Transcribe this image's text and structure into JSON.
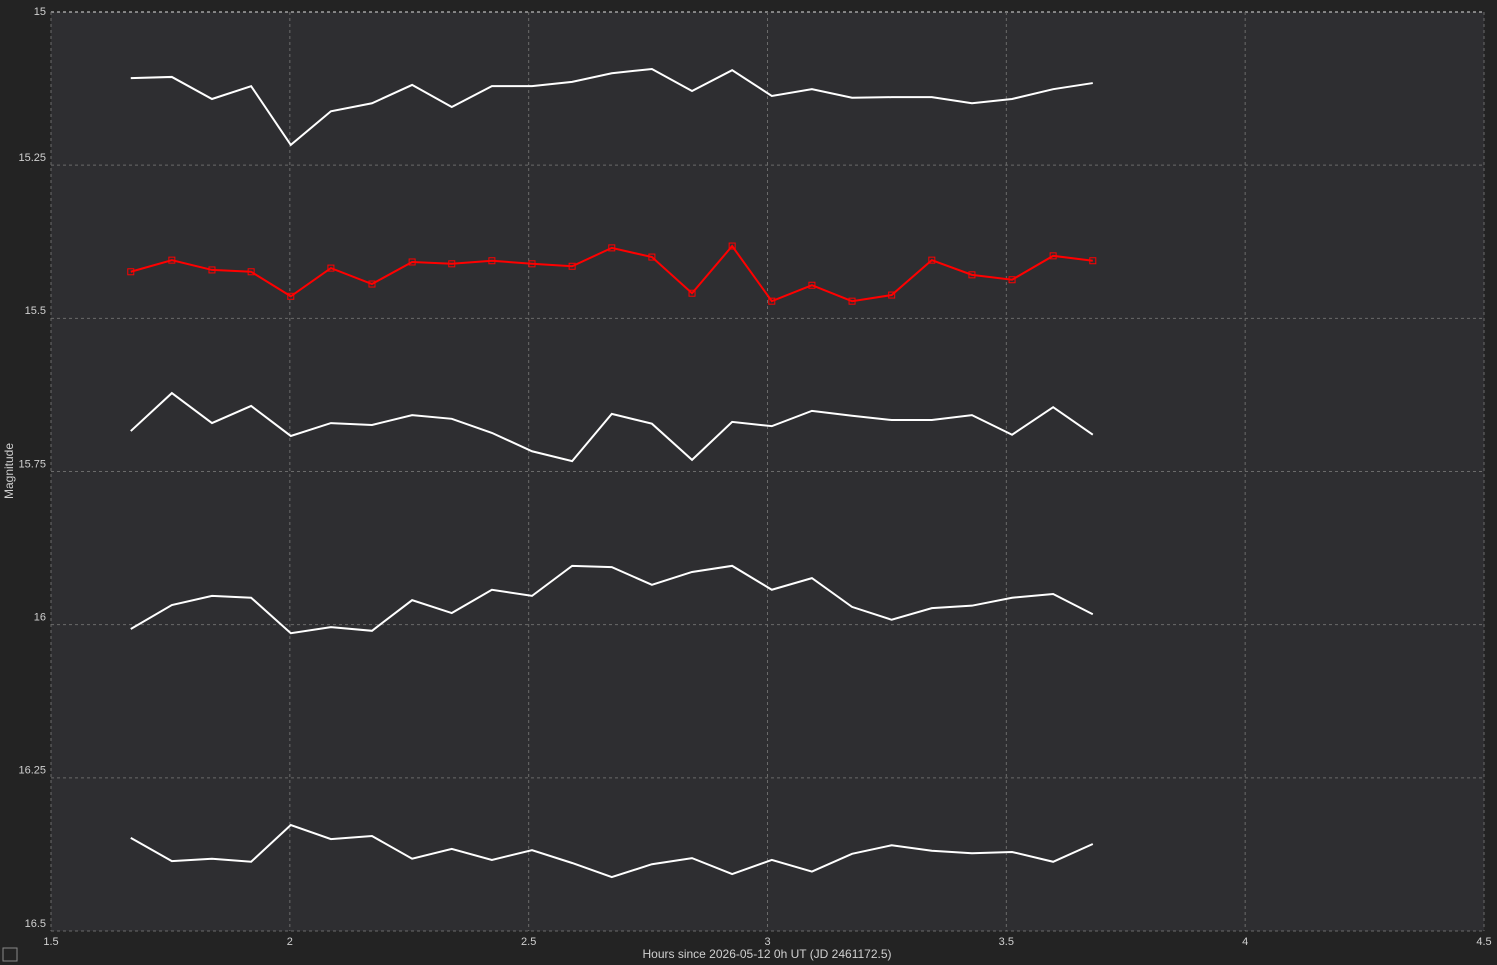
{
  "chart_data": {
    "type": "line",
    "xlabel": "Hours since 2026-05-12 0h UT (JD 2461172.5)",
    "ylabel": "Magnitude",
    "x": [
      1.667,
      1.753,
      1.837,
      1.919,
      2.002,
      2.086,
      2.172,
      2.256,
      2.339,
      2.423,
      2.507,
      2.591,
      2.674,
      2.758,
      2.842,
      2.926,
      3.009,
      3.093,
      3.177,
      3.26,
      3.344,
      3.428,
      3.512,
      3.598,
      3.681
    ],
    "series": [
      {
        "color": "#ffffff",
        "values": [
          15.108,
          15.106,
          15.142,
          15.121,
          15.217,
          15.162,
          15.149,
          15.119,
          15.155,
          15.121,
          15.121,
          15.114,
          15.1,
          15.093,
          15.129,
          15.095,
          15.137,
          15.126,
          15.14,
          15.139,
          15.139,
          15.149,
          15.142,
          15.126,
          15.116
        ]
      },
      {
        "color": "#ff0000",
        "markers": true,
        "values": [
          15.424,
          15.405,
          15.421,
          15.424,
          15.464,
          15.418,
          15.444,
          15.408,
          15.411,
          15.406,
          15.411,
          15.415,
          15.385,
          15.4,
          15.459,
          15.382,
          15.472,
          15.446,
          15.472,
          15.462,
          15.405,
          15.429,
          15.437,
          15.398,
          15.406
        ]
      },
      {
        "color": "#ffffff",
        "values": [
          15.684,
          15.622,
          15.671,
          15.643,
          15.692,
          15.671,
          15.674,
          15.658,
          15.664,
          15.687,
          15.717,
          15.733,
          15.656,
          15.672,
          15.731,
          15.669,
          15.676,
          15.651,
          15.659,
          15.666,
          15.666,
          15.658,
          15.69,
          15.645,
          15.69
        ]
      },
      {
        "color": "#ffffff",
        "values": [
          16.007,
          15.968,
          15.953,
          15.956,
          16.014,
          16.004,
          16.01,
          15.96,
          15.981,
          15.943,
          15.953,
          15.904,
          15.906,
          15.935,
          15.914,
          15.904,
          15.943,
          15.924,
          15.971,
          15.992,
          15.973,
          15.969,
          15.956,
          15.95,
          15.983
        ]
      },
      {
        "color": "#ffffff",
        "values": [
          16.348,
          16.386,
          16.382,
          16.387,
          16.327,
          16.35,
          16.345,
          16.382,
          16.366,
          16.384,
          16.368,
          16.389,
          16.412,
          16.391,
          16.381,
          16.407,
          16.384,
          16.403,
          16.374,
          16.36,
          16.369,
          16.373,
          16.371,
          16.387,
          16.358
        ]
      }
    ],
    "xlim": [
      1.5,
      4.5
    ],
    "xticks": [
      1.5,
      2,
      2.5,
      3,
      3.5,
      4,
      4.5
    ],
    "ylim": [
      16.5,
      15
    ],
    "yticks": [
      15,
      15.25,
      15.5,
      15.75,
      16,
      16.25,
      16.5
    ],
    "grid": true
  }
}
